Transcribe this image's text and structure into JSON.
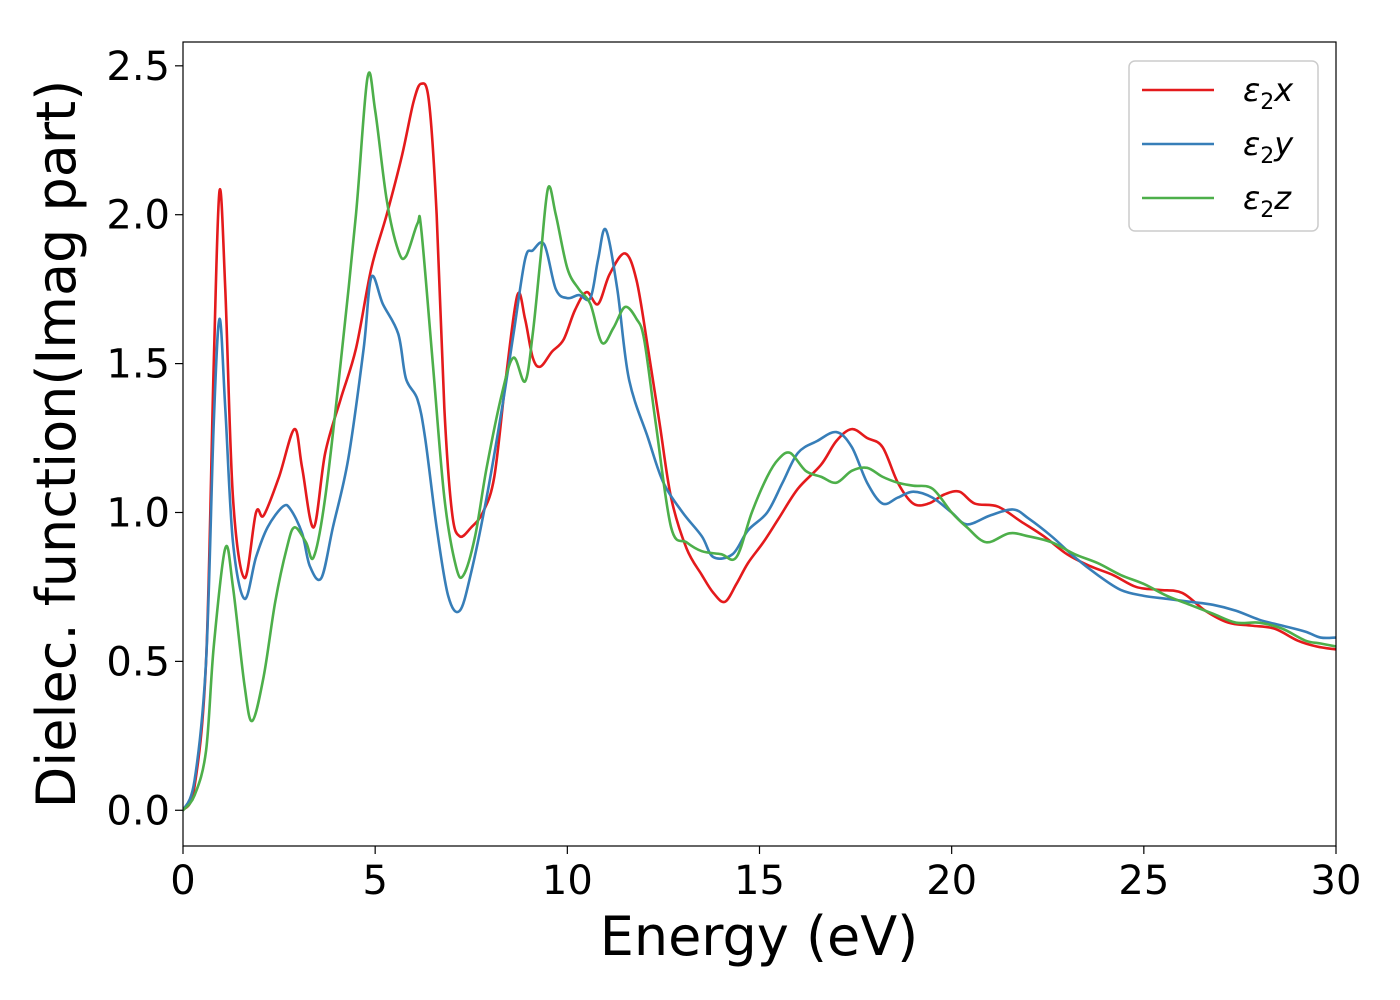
{
  "chart_data": {
    "type": "line",
    "title": "",
    "xlabel": "Energy (eV)",
    "ylabel": "Dielec. function(Imag part)",
    "xlim": [
      0,
      30
    ],
    "ylim": [
      -0.12,
      2.58
    ],
    "xticks": [
      0,
      5,
      10,
      15,
      20,
      25,
      30
    ],
    "xtick_labels": [
      "0",
      "5",
      "10",
      "15",
      "20",
      "25",
      "30"
    ],
    "yticks": [
      0.0,
      0.5,
      1.0,
      1.5,
      2.0,
      2.5
    ],
    "ytick_labels": [
      "0.0",
      "0.5",
      "1.0",
      "1.5",
      "2.0",
      "2.5"
    ],
    "grid": false,
    "legend_position": "top-right",
    "series": [
      {
        "name": "ε2x",
        "legend_main": "ε",
        "legend_sub": "2",
        "legend_suffix": "x",
        "color": "#e41a1c",
        "points": [
          [
            0,
            0
          ],
          [
            0.3,
            0.08
          ],
          [
            0.6,
            0.5
          ],
          [
            0.8,
            1.5
          ],
          [
            0.95,
            2.08
          ],
          [
            1.1,
            1.75
          ],
          [
            1.3,
            1.05
          ],
          [
            1.6,
            0.78
          ],
          [
            1.9,
            1.0
          ],
          [
            2.1,
            0.99
          ],
          [
            2.5,
            1.12
          ],
          [
            2.9,
            1.28
          ],
          [
            3.1,
            1.15
          ],
          [
            3.4,
            0.95
          ],
          [
            3.7,
            1.2
          ],
          [
            4.1,
            1.38
          ],
          [
            4.5,
            1.55
          ],
          [
            4.9,
            1.82
          ],
          [
            5.3,
            2.0
          ],
          [
            5.7,
            2.2
          ],
          [
            6.0,
            2.38
          ],
          [
            6.2,
            2.44
          ],
          [
            6.4,
            2.38
          ],
          [
            6.6,
            2.0
          ],
          [
            6.8,
            1.35
          ],
          [
            7.0,
            1.0
          ],
          [
            7.2,
            0.92
          ],
          [
            7.5,
            0.95
          ],
          [
            7.8,
            1.0
          ],
          [
            8.1,
            1.12
          ],
          [
            8.4,
            1.45
          ],
          [
            8.7,
            1.73
          ],
          [
            8.9,
            1.65
          ],
          [
            9.1,
            1.52
          ],
          [
            9.3,
            1.49
          ],
          [
            9.6,
            1.54
          ],
          [
            9.9,
            1.58
          ],
          [
            10.2,
            1.68
          ],
          [
            10.5,
            1.74
          ],
          [
            10.8,
            1.7
          ],
          [
            11.1,
            1.8
          ],
          [
            11.5,
            1.87
          ],
          [
            11.8,
            1.78
          ],
          [
            12.1,
            1.55
          ],
          [
            12.4,
            1.3
          ],
          [
            12.7,
            1.05
          ],
          [
            13.1,
            0.88
          ],
          [
            13.5,
            0.79
          ],
          [
            13.8,
            0.73
          ],
          [
            14.1,
            0.7
          ],
          [
            14.4,
            0.76
          ],
          [
            14.7,
            0.83
          ],
          [
            15.1,
            0.9
          ],
          [
            15.5,
            0.98
          ],
          [
            16.0,
            1.08
          ],
          [
            16.6,
            1.16
          ],
          [
            17.0,
            1.24
          ],
          [
            17.4,
            1.28
          ],
          [
            17.8,
            1.25
          ],
          [
            18.2,
            1.22
          ],
          [
            18.6,
            1.1
          ],
          [
            19.0,
            1.03
          ],
          [
            19.4,
            1.03
          ],
          [
            19.8,
            1.06
          ],
          [
            20.2,
            1.07
          ],
          [
            20.6,
            1.03
          ],
          [
            21.2,
            1.02
          ],
          [
            21.8,
            0.97
          ],
          [
            22.4,
            0.92
          ],
          [
            23.0,
            0.86
          ],
          [
            23.6,
            0.82
          ],
          [
            24.2,
            0.79
          ],
          [
            24.8,
            0.75
          ],
          [
            25.4,
            0.74
          ],
          [
            26.0,
            0.73
          ],
          [
            26.6,
            0.67
          ],
          [
            27.2,
            0.63
          ],
          [
            27.8,
            0.62
          ],
          [
            28.4,
            0.61
          ],
          [
            29.0,
            0.57
          ],
          [
            29.5,
            0.55
          ],
          [
            30,
            0.54
          ]
        ]
      },
      {
        "name": "ε2y",
        "legend_main": "ε",
        "legend_sub": "2",
        "legend_suffix": "y",
        "color": "#377eb8",
        "points": [
          [
            0,
            0
          ],
          [
            0.3,
            0.1
          ],
          [
            0.6,
            0.5
          ],
          [
            0.8,
            1.3
          ],
          [
            0.95,
            1.65
          ],
          [
            1.1,
            1.35
          ],
          [
            1.3,
            0.9
          ],
          [
            1.6,
            0.71
          ],
          [
            1.9,
            0.85
          ],
          [
            2.2,
            0.95
          ],
          [
            2.6,
            1.02
          ],
          [
            2.8,
            1.01
          ],
          [
            3.1,
            0.93
          ],
          [
            3.3,
            0.82
          ],
          [
            3.6,
            0.78
          ],
          [
            3.9,
            0.95
          ],
          [
            4.3,
            1.18
          ],
          [
            4.7,
            1.55
          ],
          [
            4.9,
            1.79
          ],
          [
            5.2,
            1.7
          ],
          [
            5.6,
            1.6
          ],
          [
            5.8,
            1.45
          ],
          [
            6.1,
            1.38
          ],
          [
            6.3,
            1.25
          ],
          [
            6.6,
            0.95
          ],
          [
            6.9,
            0.72
          ],
          [
            7.2,
            0.67
          ],
          [
            7.5,
            0.8
          ],
          [
            7.9,
            1.05
          ],
          [
            8.3,
            1.35
          ],
          [
            8.6,
            1.6
          ],
          [
            8.9,
            1.85
          ],
          [
            9.1,
            1.88
          ],
          [
            9.4,
            1.9
          ],
          [
            9.7,
            1.75
          ],
          [
            10.0,
            1.72
          ],
          [
            10.3,
            1.73
          ],
          [
            10.6,
            1.72
          ],
          [
            10.8,
            1.85
          ],
          [
            11.0,
            1.95
          ],
          [
            11.3,
            1.75
          ],
          [
            11.6,
            1.45
          ],
          [
            12.1,
            1.25
          ],
          [
            12.5,
            1.1
          ],
          [
            13.0,
            1.0
          ],
          [
            13.5,
            0.92
          ],
          [
            13.8,
            0.85
          ],
          [
            14.3,
            0.86
          ],
          [
            14.7,
            0.94
          ],
          [
            15.2,
            1.0
          ],
          [
            15.6,
            1.1
          ],
          [
            16.0,
            1.2
          ],
          [
            16.5,
            1.24
          ],
          [
            17.0,
            1.27
          ],
          [
            17.4,
            1.22
          ],
          [
            17.8,
            1.1
          ],
          [
            18.2,
            1.03
          ],
          [
            18.6,
            1.05
          ],
          [
            19.0,
            1.07
          ],
          [
            19.5,
            1.05
          ],
          [
            20.0,
            1.0
          ],
          [
            20.4,
            0.96
          ],
          [
            21.0,
            0.99
          ],
          [
            21.6,
            1.01
          ],
          [
            22.0,
            0.98
          ],
          [
            22.6,
            0.92
          ],
          [
            23.2,
            0.85
          ],
          [
            23.8,
            0.79
          ],
          [
            24.4,
            0.74
          ],
          [
            25.0,
            0.72
          ],
          [
            25.6,
            0.71
          ],
          [
            26.2,
            0.7
          ],
          [
            26.8,
            0.69
          ],
          [
            27.4,
            0.67
          ],
          [
            28.0,
            0.64
          ],
          [
            28.6,
            0.62
          ],
          [
            29.2,
            0.6
          ],
          [
            29.6,
            0.58
          ],
          [
            30,
            0.58
          ]
        ]
      },
      {
        "name": "ε2z",
        "legend_main": "ε",
        "legend_sub": "2",
        "legend_suffix": "z",
        "color": "#4daf4a",
        "points": [
          [
            0,
            0
          ],
          [
            0.3,
            0.05
          ],
          [
            0.6,
            0.2
          ],
          [
            0.8,
            0.55
          ],
          [
            1.1,
            0.88
          ],
          [
            1.3,
            0.75
          ],
          [
            1.6,
            0.42
          ],
          [
            1.8,
            0.3
          ],
          [
            2.1,
            0.45
          ],
          [
            2.4,
            0.7
          ],
          [
            2.7,
            0.88
          ],
          [
            2.9,
            0.95
          ],
          [
            3.2,
            0.9
          ],
          [
            3.4,
            0.85
          ],
          [
            3.7,
            1.05
          ],
          [
            4.1,
            1.5
          ],
          [
            4.5,
            2.0
          ],
          [
            4.8,
            2.46
          ],
          [
            5.0,
            2.35
          ],
          [
            5.3,
            2.05
          ],
          [
            5.6,
            1.88
          ],
          [
            5.8,
            1.86
          ],
          [
            6.1,
            1.97
          ],
          [
            6.2,
            1.95
          ],
          [
            6.5,
            1.5
          ],
          [
            6.8,
            1.05
          ],
          [
            7.1,
            0.82
          ],
          [
            7.3,
            0.79
          ],
          [
            7.6,
            0.92
          ],
          [
            7.9,
            1.15
          ],
          [
            8.3,
            1.4
          ],
          [
            8.6,
            1.52
          ],
          [
            8.9,
            1.44
          ],
          [
            9.1,
            1.6
          ],
          [
            9.3,
            1.85
          ],
          [
            9.5,
            2.09
          ],
          [
            9.7,
            2.0
          ],
          [
            10.0,
            1.82
          ],
          [
            10.3,
            1.75
          ],
          [
            10.6,
            1.7
          ],
          [
            10.9,
            1.57
          ],
          [
            11.2,
            1.62
          ],
          [
            11.5,
            1.69
          ],
          [
            11.8,
            1.65
          ],
          [
            12.0,
            1.58
          ],
          [
            12.3,
            1.3
          ],
          [
            12.7,
            0.95
          ],
          [
            13.1,
            0.9
          ],
          [
            13.5,
            0.87
          ],
          [
            14.0,
            0.86
          ],
          [
            14.4,
            0.85
          ],
          [
            14.8,
            1.0
          ],
          [
            15.2,
            1.12
          ],
          [
            15.5,
            1.18
          ],
          [
            15.8,
            1.2
          ],
          [
            16.2,
            1.14
          ],
          [
            16.6,
            1.12
          ],
          [
            17.0,
            1.1
          ],
          [
            17.4,
            1.14
          ],
          [
            17.8,
            1.15
          ],
          [
            18.2,
            1.12
          ],
          [
            18.6,
            1.1
          ],
          [
            19.0,
            1.09
          ],
          [
            19.5,
            1.08
          ],
          [
            20.0,
            1.0
          ],
          [
            20.4,
            0.95
          ],
          [
            20.9,
            0.9
          ],
          [
            21.5,
            0.93
          ],
          [
            22.0,
            0.92
          ],
          [
            22.6,
            0.9
          ],
          [
            23.2,
            0.86
          ],
          [
            23.8,
            0.83
          ],
          [
            24.4,
            0.79
          ],
          [
            25.0,
            0.76
          ],
          [
            25.6,
            0.72
          ],
          [
            26.2,
            0.69
          ],
          [
            26.8,
            0.66
          ],
          [
            27.4,
            0.63
          ],
          [
            28.0,
            0.63
          ],
          [
            28.6,
            0.61
          ],
          [
            29.2,
            0.57
          ],
          [
            29.6,
            0.56
          ],
          [
            30,
            0.55
          ]
        ]
      }
    ]
  }
}
